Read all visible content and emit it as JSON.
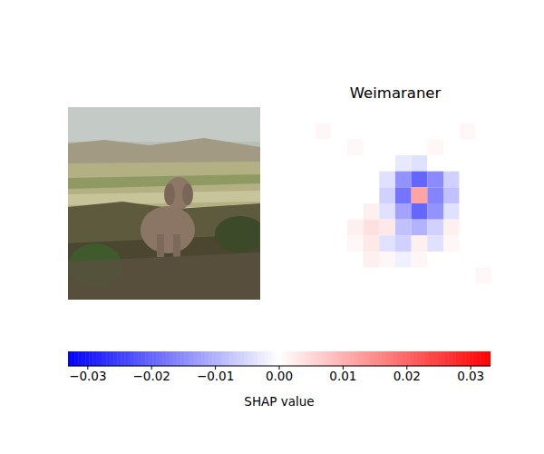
{
  "chart_data": {
    "type": "image_heatmap",
    "title": "Weimaraner",
    "tick_labels": false,
    "cells": [
      [
        0,
        0,
        0,
        0,
        0,
        0,
        0,
        0,
        0,
        0,
        0,
        0
      ],
      [
        0,
        0.001,
        0,
        0,
        0,
        0,
        0,
        0,
        0,
        0,
        0.001,
        0
      ],
      [
        0,
        0,
        0,
        0.001,
        0,
        0,
        0,
        0,
        0.001,
        0,
        0,
        0
      ],
      [
        0,
        0,
        0,
        0,
        0,
        0,
        -0.003,
        -0.004,
        0,
        0,
        0,
        0
      ],
      [
        0,
        0,
        0,
        0,
        0,
        -0.004,
        -0.014,
        -0.02,
        -0.015,
        -0.006,
        0,
        0
      ],
      [
        0,
        0,
        0,
        0,
        0,
        -0.006,
        -0.018,
        0.012,
        -0.016,
        -0.008,
        0,
        0
      ],
      [
        0,
        0,
        0,
        0,
        0.002,
        -0.004,
        -0.012,
        -0.02,
        -0.014,
        -0.004,
        0,
        0
      ],
      [
        0,
        0,
        0,
        0.002,
        0.004,
        0.003,
        -0.008,
        -0.01,
        -0.006,
        0.002,
        0,
        0
      ],
      [
        0,
        0,
        0,
        0.001,
        0.003,
        -0.004,
        -0.006,
        0.002,
        -0.004,
        0.001,
        0,
        0
      ],
      [
        0,
        0,
        0,
        0,
        0.002,
        0.001,
        -0.002,
        0.001,
        0,
        0,
        0,
        0
      ],
      [
        0,
        0,
        0,
        0,
        0,
        0,
        0,
        0,
        0,
        0,
        0,
        0.001
      ],
      [
        0,
        0,
        0,
        0,
        0,
        0,
        0,
        0,
        0,
        0,
        0,
        0
      ]
    ],
    "colorbar": {
      "label": "SHAP value",
      "range": [
        -0.0331,
        0.0331
      ],
      "ticks": [
        {
          "value": -0.03,
          "label": "−0.03"
        },
        {
          "value": -0.02,
          "label": "−0.02"
        },
        {
          "value": -0.01,
          "label": "−0.01"
        },
        {
          "value": 0,
          "label": "0.00"
        },
        0.01,
        0.02,
        0.03
      ]
    }
  }
}
